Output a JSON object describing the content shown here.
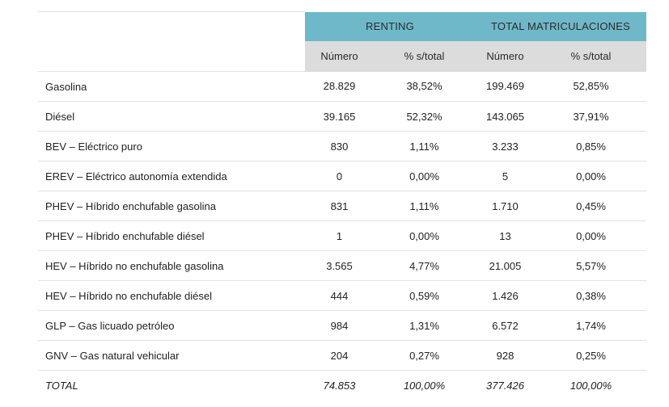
{
  "header": {
    "group_renting": "RENTING",
    "group_total": "TOTAL MATRICULACIONES",
    "sub_numero_1": "Número",
    "sub_pct_1": "% s/total",
    "sub_numero_2": "Número",
    "sub_pct_2": "% s/total"
  },
  "rows": [
    {
      "label": "Gasolina",
      "r_num": "28.829",
      "r_pct": "38,52%",
      "t_num": "199.469",
      "t_pct": "52,85%"
    },
    {
      "label": "Diésel",
      "r_num": "39.165",
      "r_pct": "52,32%",
      "t_num": "143.065",
      "t_pct": "37,91%"
    },
    {
      "label": "BEV – Eléctrico puro",
      "r_num": "830",
      "r_pct": "1,11%",
      "t_num": "3.233",
      "t_pct": "0,85%"
    },
    {
      "label": "EREV – Eléctrico autonomía extendida",
      "r_num": "0",
      "r_pct": "0,00%",
      "t_num": "5",
      "t_pct": "0,00%"
    },
    {
      "label": "PHEV – Híbrido enchufable gasolina",
      "r_num": "831",
      "r_pct": "1,11%",
      "t_num": "1.710",
      "t_pct": "0,45%"
    },
    {
      "label": "PHEV – Híbrido enchufable diésel",
      "r_num": "1",
      "r_pct": "0,00%",
      "t_num": "13",
      "t_pct": "0,00%"
    },
    {
      "label": "HEV – Híbrido no enchufable gasolina",
      "r_num": "3.565",
      "r_pct": "4,77%",
      "t_num": "21.005",
      "t_pct": "5,57%"
    },
    {
      "label": "HEV – Híbrido no enchufable diésel",
      "r_num": "444",
      "r_pct": "0,59%",
      "t_num": "1.426",
      "t_pct": "0,38%"
    },
    {
      "label": "GLP – Gas licuado petróleo",
      "r_num": "984",
      "r_pct": "1,31%",
      "t_num": "6.572",
      "t_pct": "1,74%"
    },
    {
      "label": "GNV – Gas natural vehicular",
      "r_num": "204",
      "r_pct": "0,27%",
      "t_num": "928",
      "t_pct": "0,25%"
    }
  ],
  "total": {
    "label": "TOTAL",
    "r_num": "74.853",
    "r_pct": "100,00%",
    "t_num": "377.426",
    "t_pct": "100,00%"
  },
  "colors": {
    "group_header_bg": "#6fb8c9",
    "sub_header_bg": "#dcdcdc",
    "row_divider": "#e2e2e2"
  }
}
